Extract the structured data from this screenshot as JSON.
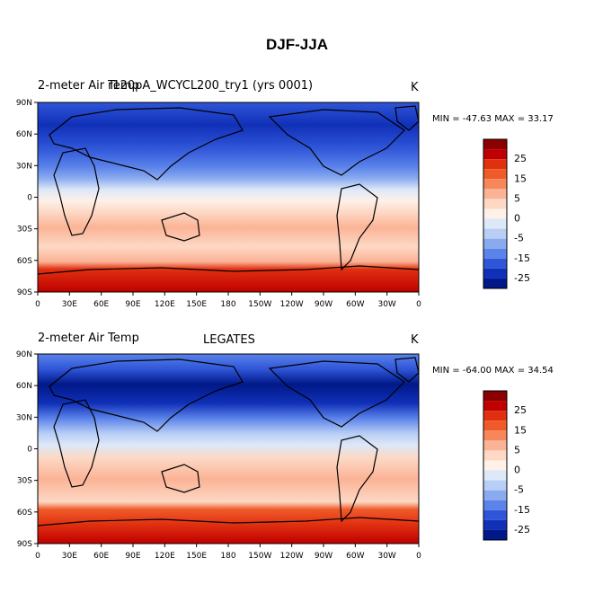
{
  "title": "DJF-JJA",
  "panels": [
    {
      "left_title": "2-meter Air Temp",
      "center_title": "r120pA_WCYCL200_try1 (yrs 0001)",
      "units": "K",
      "stats": "MIN = -47.63 MAX =  33.17"
    },
    {
      "left_title": "2-meter Air Temp",
      "center_title": "LEGATES",
      "units": "K",
      "stats": "MIN = -64.00 MAX =  34.54"
    }
  ],
  "axes": {
    "lat_ticks": [
      "90N",
      "60N",
      "30N",
      "0",
      "30S",
      "60S",
      "90S"
    ],
    "lon_ticks": [
      "0",
      "30E",
      "60E",
      "90E",
      "120E",
      "150E",
      "180",
      "150W",
      "120W",
      "90W",
      "60W",
      "30W",
      "0"
    ]
  },
  "colorbar": {
    "labels": [
      "25",
      "15",
      "5",
      "0",
      "-5",
      "-15",
      "-25"
    ],
    "colors": [
      "#8b0000",
      "#c00000",
      "#e03010",
      "#f05a2a",
      "#f7875a",
      "#fbb396",
      "#fdd8c4",
      "#fff0e8",
      "#dde8f8",
      "#b8cef5",
      "#8aaaf0",
      "#5b83ea",
      "#2f55d8",
      "#1030b8",
      "#001888"
    ]
  }
}
